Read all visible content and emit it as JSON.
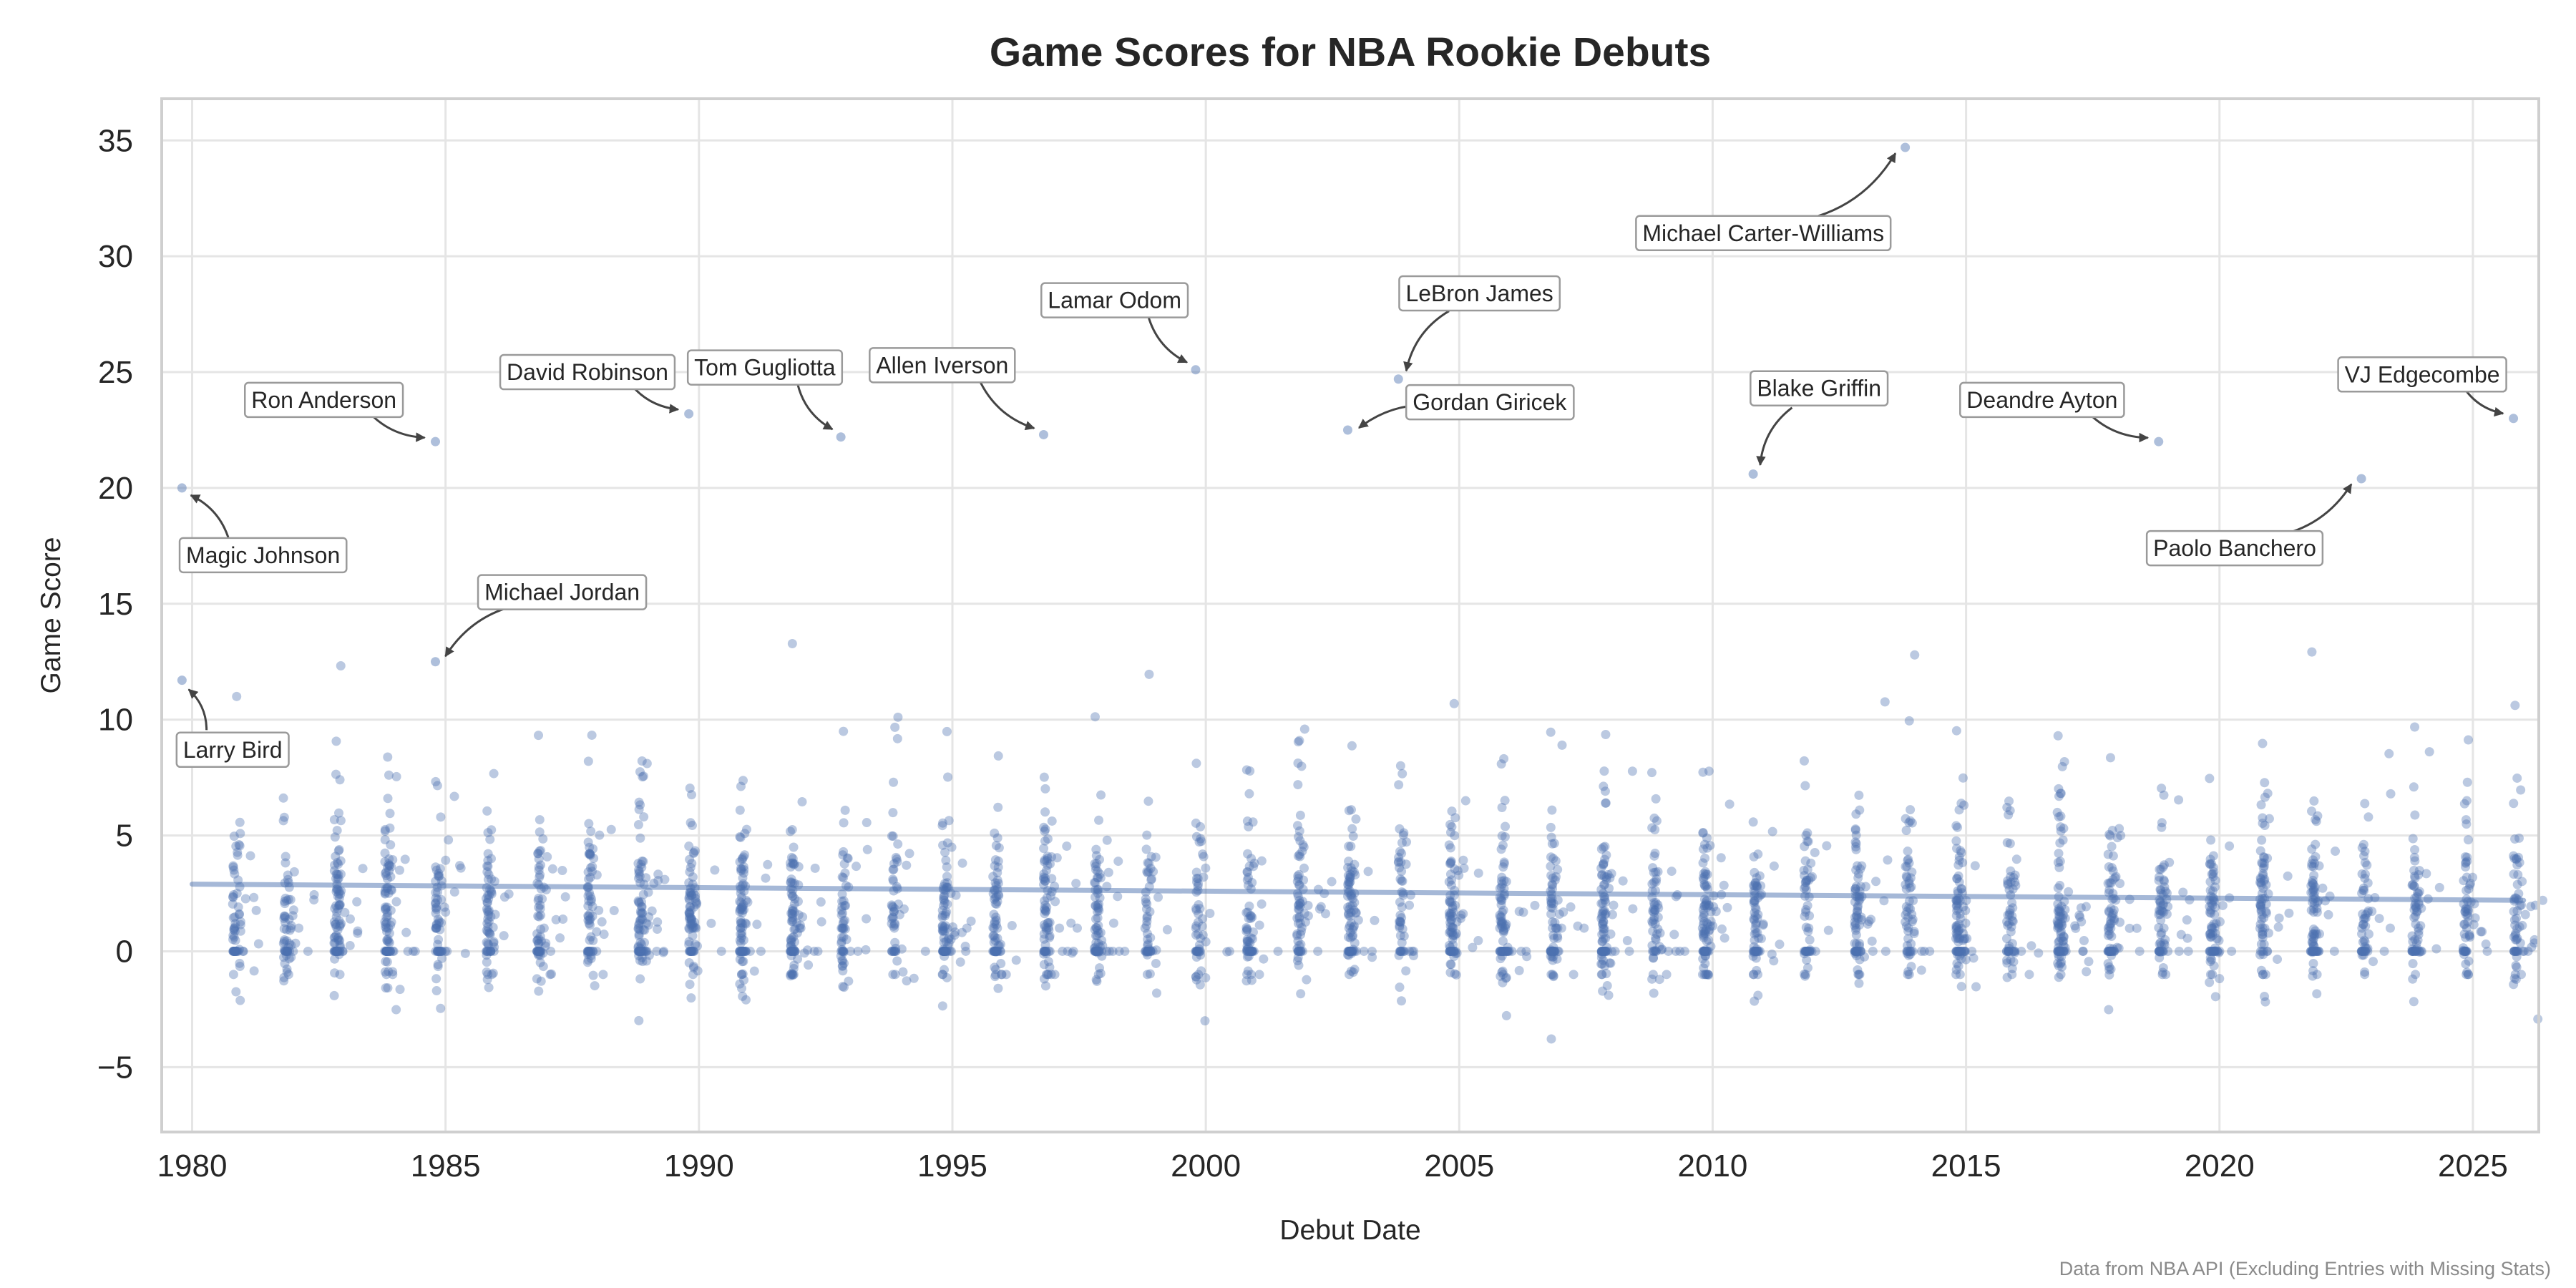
{
  "chart_data": {
    "type": "scatter",
    "title": "Game Scores for NBA Rookie Debuts",
    "xlabel": "Debut Date",
    "ylabel": "Game Score",
    "source_note": "Data from NBA API (Excluding Entries with Missing Stats)",
    "xlim": [
      1979.4,
      2026.3
    ],
    "ylim": [
      -7.8,
      36.8
    ],
    "xticks": [
      1980,
      1985,
      1990,
      1995,
      2000,
      2005,
      2010,
      2015,
      2020,
      2025
    ],
    "yticks": [
      -5,
      0,
      5,
      10,
      15,
      20,
      25,
      30,
      35
    ],
    "ytick_labels": [
      "−5",
      "0",
      "5",
      "10",
      "15",
      "20",
      "25",
      "30",
      "35"
    ],
    "grid": true,
    "point_color": "#4c72b0",
    "trend_color": "#4c72b0",
    "trend": {
      "x": [
        1980.0,
        2026.0
      ],
      "y": [
        2.9,
        2.2
      ]
    },
    "seasons": [
      1980.8,
      1981.8,
      1982.8,
      1983.8,
      1984.8,
      1985.8,
      1986.8,
      1987.8,
      1988.8,
      1989.8,
      1990.8,
      1991.8,
      1992.8,
      1993.8,
      1994.8,
      1995.8,
      1996.8,
      1997.8,
      1998.8,
      1999.8,
      2000.8,
      2001.8,
      2002.8,
      2003.8,
      2004.8,
      2005.8,
      2006.8,
      2007.8,
      2008.8,
      2009.8,
      2010.8,
      2011.8,
      2012.8,
      2013.8,
      2014.8,
      2015.8,
      2016.8,
      2017.8,
      2018.8,
      2019.8,
      2020.8,
      2021.8,
      2022.8,
      2023.8,
      2024.8,
      2025.8
    ],
    "notable_points": [
      {
        "name": "Magic Johnson",
        "x": 1979.8,
        "y": 20.0
      },
      {
        "name": "Larry Bird",
        "x": 1979.8,
        "y": 11.7
      },
      {
        "name": "Ron Anderson",
        "x": 1984.8,
        "y": 22.0
      },
      {
        "name": "Michael Jordan",
        "x": 1984.8,
        "y": 12.5
      },
      {
        "name": "David Robinson",
        "x": 1989.8,
        "y": 23.2
      },
      {
        "name": "Tom Gugliotta",
        "x": 1992.8,
        "y": 22.2
      },
      {
        "name": "Allen Iverson",
        "x": 1996.8,
        "y": 22.3
      },
      {
        "name": "Lamar Odom",
        "x": 1999.8,
        "y": 25.1
      },
      {
        "name": "LeBron James",
        "x": 2003.8,
        "y": 24.7
      },
      {
        "name": "Gordan Giricek",
        "x": 2002.8,
        "y": 22.5
      },
      {
        "name": "Michael Carter-Williams",
        "x": 2013.8,
        "y": 34.7
      },
      {
        "name": "Blake Griffin",
        "x": 2010.8,
        "y": 20.6
      },
      {
        "name": "Deandre Ayton",
        "x": 2018.8,
        "y": 22.0
      },
      {
        "name": "VJ Edgecombe",
        "x": 2025.8,
        "y": 23.0
      },
      {
        "name": "Paolo Banchero",
        "x": 2022.8,
        "y": 20.4
      }
    ],
    "annotations": [
      {
        "text": "Magic Johnson",
        "label_x": 1981.4,
        "label_y": 17.1,
        "target": 0
      },
      {
        "text": "Larry Bird",
        "label_x": 1980.8,
        "label_y": 8.7,
        "target": 1
      },
      {
        "text": "Ron Anderson",
        "label_x": 1982.6,
        "label_y": 23.8,
        "target": 2
      },
      {
        "text": "Michael Jordan",
        "label_x": 1987.3,
        "label_y": 15.5,
        "target": 3
      },
      {
        "text": "David Robinson",
        "label_x": 1987.8,
        "label_y": 25.0,
        "target": 4
      },
      {
        "text": "Tom Gugliotta",
        "label_x": 1991.3,
        "label_y": 25.2,
        "target": 5
      },
      {
        "text": "Allen Iverson",
        "label_x": 1994.8,
        "label_y": 25.3,
        "target": 6
      },
      {
        "text": "Lamar Odom",
        "label_x": 1998.2,
        "label_y": 28.1,
        "target": 7
      },
      {
        "text": "LeBron James",
        "label_x": 2005.4,
        "label_y": 28.4,
        "target": 8
      },
      {
        "text": "Gordan Giricek",
        "label_x": 2005.6,
        "label_y": 23.7,
        "target": 9
      },
      {
        "text": "Michael Carter-Williams",
        "label_x": 2011.0,
        "label_y": 31.0,
        "target": 10
      },
      {
        "text": "Blake Griffin",
        "label_x": 2012.1,
        "label_y": 24.3,
        "target": 11
      },
      {
        "text": "Deandre Ayton",
        "label_x": 2016.5,
        "label_y": 23.8,
        "target": 12
      },
      {
        "text": "VJ Edgecombe",
        "label_x": 2024.0,
        "label_y": 24.9,
        "target": 13
      },
      {
        "text": "Paolo Banchero",
        "label_x": 2020.3,
        "label_y": 17.4,
        "target": 14
      }
    ]
  }
}
